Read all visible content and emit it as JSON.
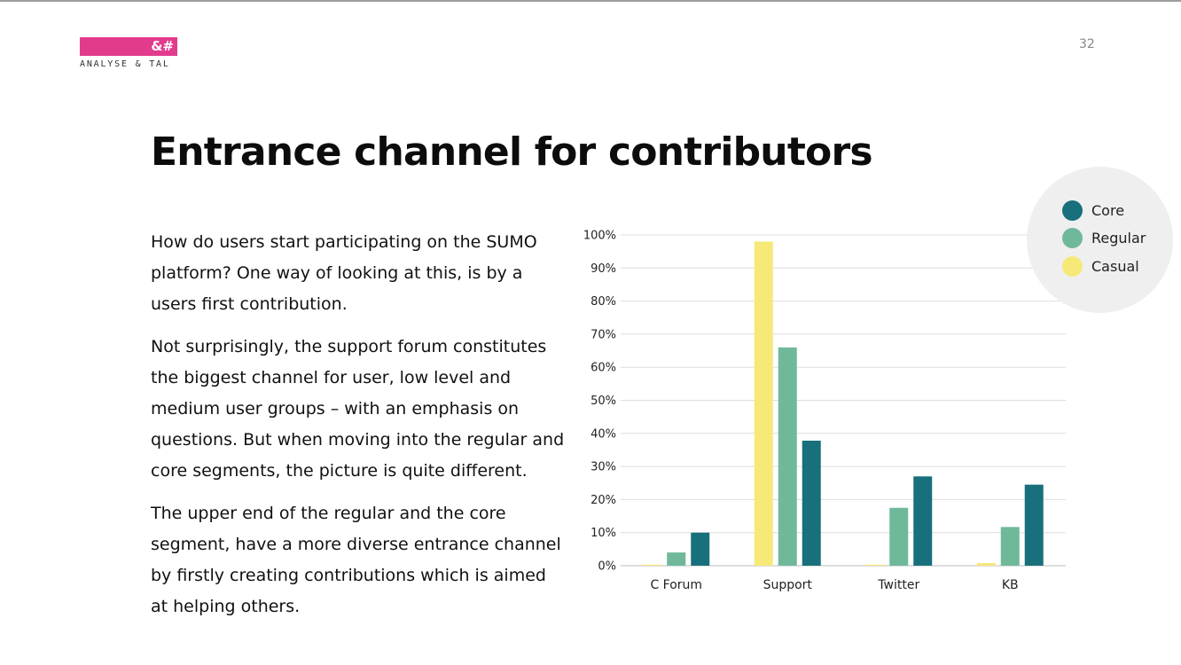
{
  "slide": {
    "logo": {
      "mark": "&#",
      "name": "ANALYSE & TAL",
      "brand_color": "#e23b8e"
    },
    "page_number": "32",
    "title": "Entrance channel for contributors",
    "paragraphs": [
      "How do users start participating on the SUMO platform? One way of looking at this, is by a users first contribution.",
      "Not surprisingly, the support forum constitutes the biggest channel for user, low level and medium user groups – with an emphasis on questions. But when moving into the regular and core segments, the picture is quite different.",
      "The upper end of the regular and the core segment, have a more diverse entrance channel by firstly creating contributions which is aimed at helping others."
    ]
  },
  "chart_data": {
    "type": "bar",
    "categories": [
      "C Forum",
      "Support",
      "Twitter",
      "KB"
    ],
    "series": [
      {
        "name": "Casual",
        "color": "#f6e978",
        "values": [
          0.3,
          98,
          0.3,
          0.8
        ]
      },
      {
        "name": "Regular",
        "color": "#6fb99a",
        "values": [
          4,
          66,
          17.5,
          11.7
        ]
      },
      {
        "name": "Core",
        "color": "#18707c",
        "values": [
          10,
          37.8,
          27,
          24.5
        ]
      }
    ],
    "legend_order": [
      "Core",
      "Regular",
      "Casual"
    ],
    "yticks": [
      "0%",
      "10%",
      "20%",
      "30%",
      "40%",
      "50%",
      "60%",
      "70%",
      "80%",
      "90%",
      "100%"
    ],
    "ylim": [
      0,
      100
    ],
    "grid": true,
    "legend_position": "top-right",
    "title": "",
    "xlabel": "",
    "ylabel": ""
  }
}
